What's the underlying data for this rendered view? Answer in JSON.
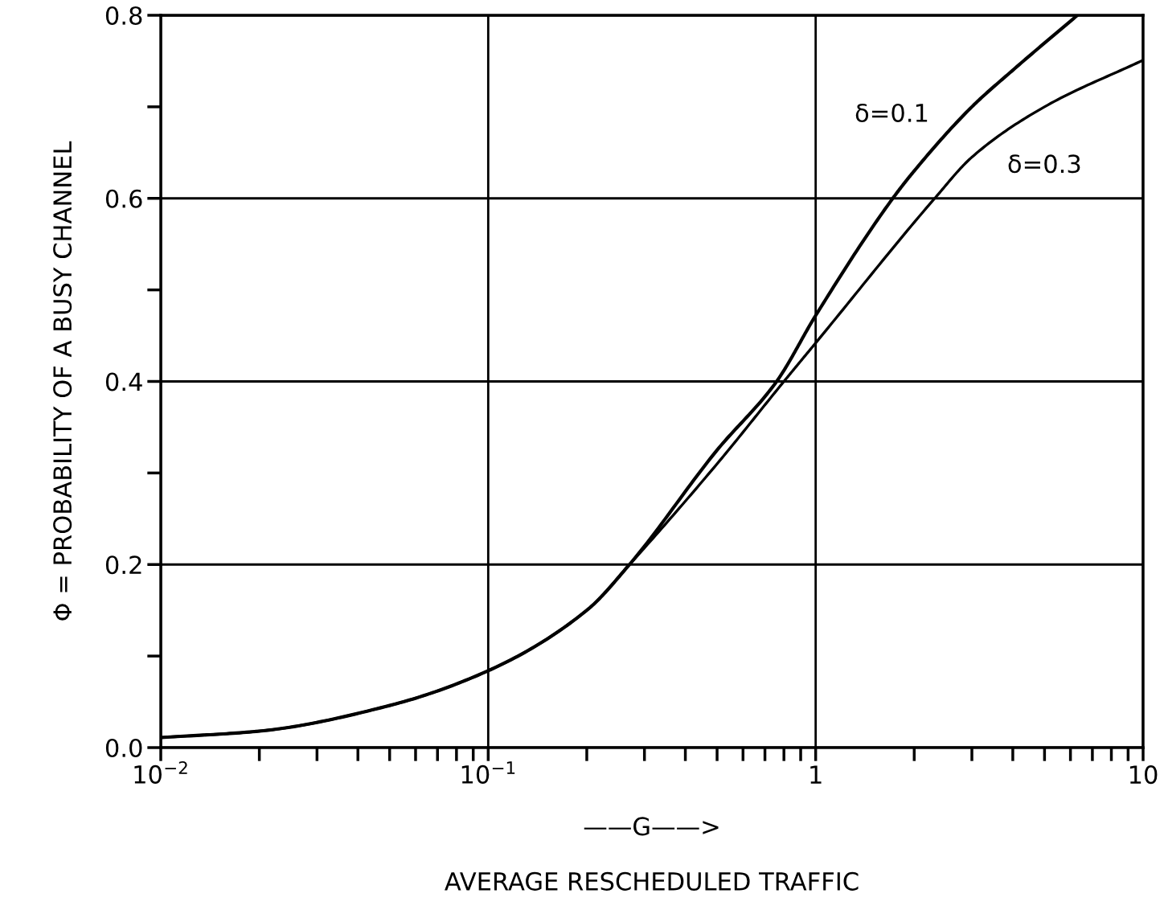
{
  "chart_data": {
    "type": "line",
    "xlabel": "——G——>\n\nAVERAGE RESCHEDULED TRAFFIC",
    "ylabel": "Φ = PROBABILITY OF A BUSY CHANNEL",
    "log": "x",
    "xlim": [
      0.01,
      10
    ],
    "ylim": [
      0,
      0.8
    ],
    "xticks": [
      {
        "value": 0.01,
        "label": "10$^{−2}$"
      },
      {
        "value": 0.1,
        "label": "10$^{−1}$"
      },
      1,
      10
    ],
    "yticks": [
      {
        "value": 0.0,
        "label": "0.0"
      },
      {
        "value": 0.2,
        "label": "0.2"
      },
      {
        "value": 0.4,
        "label": "0.4"
      },
      {
        "value": 0.6,
        "label": "0.6"
      },
      {
        "value": 0.8,
        "label": "0.8"
      }
    ],
    "grid": true,
    "series": [
      {
        "name": "δ=0.1",
        "color": "#000000",
        "x": [
          0.01,
          0.02,
          0.05,
          0.1,
          0.2,
          0.27,
          0.5,
          0.76,
          1.0,
          1.72,
          2.0,
          3.0,
          4.0,
          6.3
        ],
        "values": [
          0.011,
          0.018,
          0.046,
          0.084,
          0.15,
          0.2,
          0.325,
          0.4,
          0.472,
          0.6,
          0.63,
          0.7,
          0.74,
          0.8
        ]
      },
      {
        "name": "δ=0.3",
        "color": "#000000",
        "x": [
          0.01,
          0.02,
          0.05,
          0.1,
          0.2,
          0.27,
          0.5,
          0.8,
          1.0,
          2.31,
          3.0,
          5.0,
          10.0
        ],
        "values": [
          0.011,
          0.018,
          0.046,
          0.084,
          0.15,
          0.2,
          0.31,
          0.4,
          0.442,
          0.6,
          0.645,
          0.7,
          0.751
        ]
      }
    ]
  }
}
